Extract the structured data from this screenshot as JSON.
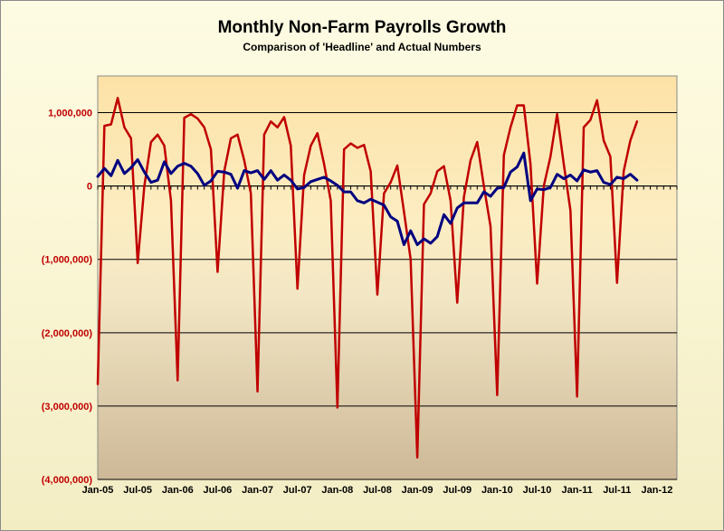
{
  "chart_data": {
    "type": "line",
    "title": "Monthly Non-Farm Payrolls Growth",
    "subtitle": "Comparison of 'Headline' and Actual Numbers",
    "xlabel": "",
    "ylabel": "",
    "ylim": [
      -4000000,
      1500000
    ],
    "xlim": [
      "Jan-05",
      "Apr-12"
    ],
    "grid": true,
    "yticks": [
      1000000,
      0,
      -1000000,
      -2000000,
      -3000000,
      -4000000
    ],
    "ytick_labels": [
      "1,000,000",
      "0",
      "(1,000,000)",
      "(2,000,000)",
      "(3,000,000)",
      "(4,000,000)"
    ],
    "xtick_labels": [
      "Jan-05",
      "Jul-05",
      "Jan-06",
      "Jul-06",
      "Jan-07",
      "Jul-07",
      "Jan-08",
      "Jul-08",
      "Jan-09",
      "Jul-09",
      "Jan-10",
      "Jul-10",
      "Jan-11",
      "Jul-11",
      "Jan-12"
    ],
    "series": [
      {
        "color": "#c00000",
        "values": [
          -2700000,
          820000,
          840000,
          1200000,
          800000,
          650000,
          -1050000,
          0,
          600000,
          700000,
          550000,
          -200000,
          -2650000,
          930000,
          980000,
          920000,
          800000,
          500000,
          -1170000,
          200000,
          650000,
          700000,
          350000,
          -100000,
          -2800000,
          700000,
          880000,
          800000,
          940000,
          550000,
          -1400000,
          150000,
          550000,
          720000,
          300000,
          -200000,
          -3020000,
          500000,
          580000,
          520000,
          560000,
          200000,
          -1480000,
          -100000,
          50000,
          280000,
          -350000,
          -1000000,
          -3700000,
          -250000,
          -100000,
          200000,
          270000,
          -200000,
          -1590000,
          -150000,
          350000,
          600000,
          0,
          -550000,
          -2850000,
          420000,
          800000,
          1100000,
          1100000,
          300000,
          -1330000,
          0,
          400000,
          980000,
          300000,
          -330000,
          -2870000,
          800000,
          900000,
          1170000,
          620000,
          400000,
          -1320000,
          200000,
          620000,
          880000
        ]
      },
      {
        "color": "#000080",
        "values": [
          130000,
          240000,
          140000,
          350000,
          170000,
          250000,
          360000,
          190000,
          50000,
          80000,
          330000,
          170000,
          270000,
          310000,
          270000,
          170000,
          10000,
          70000,
          200000,
          190000,
          160000,
          -30000,
          210000,
          180000,
          210000,
          90000,
          210000,
          80000,
          150000,
          80000,
          -40000,
          -20000,
          60000,
          90000,
          120000,
          70000,
          10000,
          -80000,
          -80000,
          -200000,
          -230000,
          -180000,
          -220000,
          -260000,
          -420000,
          -480000,
          -800000,
          -610000,
          -800000,
          -720000,
          -780000,
          -690000,
          -390000,
          -510000,
          -300000,
          -230000,
          -230000,
          -230000,
          -80000,
          -140000,
          -30000,
          -20000,
          190000,
          260000,
          450000,
          -200000,
          -40000,
          -50000,
          -20000,
          160000,
          100000,
          150000,
          70000,
          220000,
          190000,
          210000,
          50000,
          20000,
          120000,
          100000,
          160000,
          80000
        ]
      }
    ]
  }
}
